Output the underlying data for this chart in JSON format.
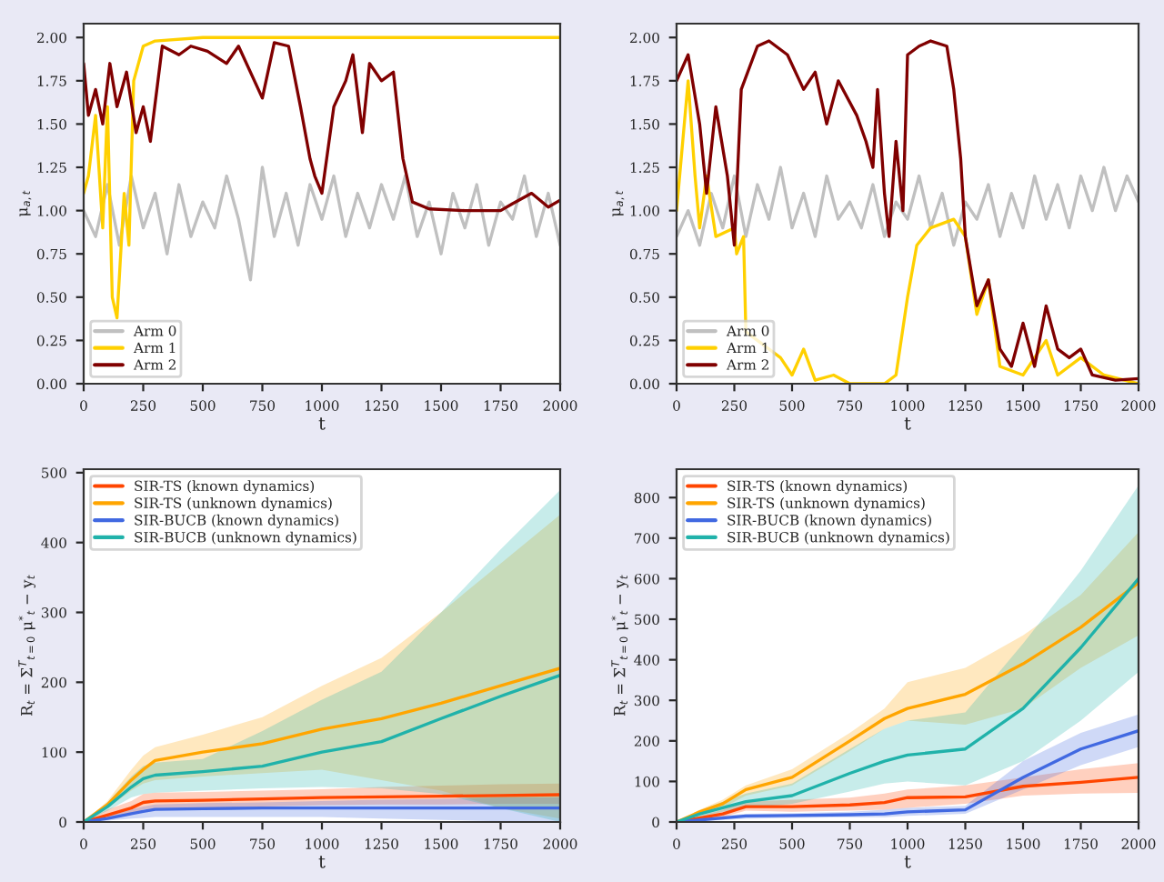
{
  "chart_data": [
    {
      "type": "line",
      "xlabel": "t",
      "ylabel": "μ$_{a,t}$",
      "xlim": [
        0,
        2000
      ],
      "ylim": [
        0,
        2.08
      ],
      "legend": "lower left",
      "grid": false,
      "xticks": [
        0,
        250,
        500,
        750,
        1000,
        1250,
        1500,
        1750,
        2000
      ],
      "yticks": [
        {
          "value": 0,
          "label": "0.00"
        },
        {
          "value": 0.25,
          "label": "0.25"
        },
        {
          "value": 0.5,
          "label": "0.50"
        },
        {
          "value": 0.75,
          "label": "0.75"
        },
        {
          "value": 1,
          "label": "1.00"
        },
        {
          "value": 1.25,
          "label": "1.25"
        },
        {
          "value": 1.5,
          "label": "1.50"
        },
        {
          "value": 1.75,
          "label": "1.75"
        },
        {
          "value": 2,
          "label": "2.00"
        }
      ],
      "series": [
        {
          "name": "Arm 0",
          "color": "#c0c0c0",
          "x": [
            0,
            50,
            100,
            150,
            200,
            250,
            300,
            350,
            400,
            450,
            500,
            550,
            600,
            650,
            700,
            750,
            800,
            850,
            900,
            950,
            1000,
            1050,
            1100,
            1150,
            1200,
            1250,
            1300,
            1350,
            1400,
            1450,
            1500,
            1550,
            1600,
            1650,
            1700,
            1750,
            1800,
            1850,
            1900,
            1950,
            2000
          ],
          "values": [
            1.0,
            0.85,
            1.15,
            0.8,
            1.2,
            0.9,
            1.1,
            0.75,
            1.15,
            0.85,
            1.05,
            0.9,
            1.2,
            0.95,
            0.6,
            1.25,
            0.85,
            1.1,
            0.8,
            1.15,
            0.95,
            1.2,
            0.85,
            1.1,
            0.9,
            1.15,
            0.95,
            1.2,
            0.85,
            1.05,
            0.75,
            1.1,
            0.9,
            1.15,
            0.8,
            1.05,
            0.95,
            1.2,
            0.85,
            1.1,
            0.8
          ]
        },
        {
          "name": "Arm 1",
          "color": "#ffd000",
          "x": [
            0,
            20,
            50,
            80,
            100,
            120,
            140,
            170,
            190,
            210,
            250,
            300,
            500,
            1000,
            1500,
            2000
          ],
          "values": [
            1.1,
            1.2,
            1.55,
            0.9,
            1.6,
            0.5,
            0.38,
            1.1,
            0.8,
            1.75,
            1.95,
            1.98,
            2.0,
            2.0,
            2.0,
            2.0
          ]
        },
        {
          "name": "Arm 2",
          "color": "#800000",
          "x": [
            0,
            20,
            50,
            80,
            110,
            140,
            180,
            220,
            250,
            280,
            330,
            400,
            450,
            520,
            600,
            650,
            750,
            800,
            860,
            910,
            950,
            970,
            1000,
            1050,
            1100,
            1130,
            1170,
            1200,
            1250,
            1300,
            1340,
            1380,
            1450,
            1600,
            1750,
            1800,
            1880,
            1950,
            2000
          ],
          "values": [
            1.85,
            1.55,
            1.7,
            1.5,
            1.85,
            1.6,
            1.8,
            1.45,
            1.6,
            1.4,
            1.95,
            1.9,
            1.95,
            1.92,
            1.85,
            1.95,
            1.65,
            1.97,
            1.95,
            1.6,
            1.3,
            1.2,
            1.1,
            1.6,
            1.75,
            1.9,
            1.45,
            1.85,
            1.75,
            1.8,
            1.3,
            1.05,
            1.01,
            1.0,
            1.0,
            1.04,
            1.1,
            1.02,
            1.06
          ]
        }
      ]
    },
    {
      "type": "line",
      "xlabel": "t",
      "ylabel": "μ$_{a,t}$",
      "xlim": [
        0,
        2000
      ],
      "ylim": [
        0,
        2.08
      ],
      "legend": "lower left",
      "grid": false,
      "xticks": [
        0,
        250,
        500,
        750,
        1000,
        1250,
        1500,
        1750,
        2000
      ],
      "yticks": [
        {
          "value": 0,
          "label": "0.00"
        },
        {
          "value": 0.25,
          "label": "0.25"
        },
        {
          "value": 0.5,
          "label": "0.50"
        },
        {
          "value": 0.75,
          "label": "0.75"
        },
        {
          "value": 1,
          "label": "1.00"
        },
        {
          "value": 1.25,
          "label": "1.25"
        },
        {
          "value": 1.5,
          "label": "1.50"
        },
        {
          "value": 1.75,
          "label": "1.75"
        },
        {
          "value": 2,
          "label": "2.00"
        }
      ],
      "series": [
        {
          "name": "Arm 0",
          "color": "#c0c0c0",
          "x": [
            0,
            50,
            100,
            150,
            200,
            250,
            300,
            350,
            400,
            450,
            500,
            550,
            600,
            650,
            700,
            750,
            800,
            850,
            900,
            950,
            1000,
            1050,
            1100,
            1150,
            1200,
            1250,
            1300,
            1350,
            1400,
            1450,
            1500,
            1550,
            1600,
            1650,
            1700,
            1750,
            1800,
            1850,
            1900,
            1950,
            2000
          ],
          "values": [
            0.85,
            1.0,
            0.8,
            1.1,
            0.9,
            1.2,
            0.85,
            1.15,
            0.95,
            1.25,
            0.9,
            1.1,
            0.85,
            1.2,
            0.95,
            1.05,
            0.9,
            1.15,
            0.85,
            1.05,
            0.95,
            1.2,
            0.9,
            1.1,
            0.8,
            1.05,
            0.95,
            1.15,
            0.85,
            1.1,
            0.9,
            1.2,
            0.95,
            1.15,
            0.9,
            1.2,
            1.0,
            1.25,
            1.0,
            1.2,
            1.05
          ]
        },
        {
          "name": "Arm 1",
          "color": "#ffd000",
          "x": [
            0,
            50,
            80,
            100,
            130,
            170,
            250,
            260,
            290,
            300,
            330,
            380,
            450,
            500,
            550,
            600,
            680,
            750,
            900,
            950,
            1000,
            1040,
            1100,
            1200,
            1250,
            1300,
            1350,
            1400,
            1500,
            1600,
            1650,
            1750,
            1850,
            2000
          ],
          "values": [
            1.0,
            1.75,
            1.2,
            0.9,
            1.2,
            0.85,
            0.9,
            0.75,
            0.85,
            0.3,
            null,
            null,
            0.15,
            0.05,
            0.2,
            0.02,
            0.05,
            0.0,
            0.0,
            0.05,
            0.5,
            0.8,
            0.9,
            0.95,
            0.85,
            0.4,
            0.6,
            0.1,
            0.05,
            0.25,
            0.05,
            0.15,
            0.05,
            0.0
          ]
        },
        {
          "name": "Arm 2",
          "color": "#800000",
          "x": [
            0,
            50,
            100,
            130,
            170,
            220,
            250,
            280,
            350,
            400,
            480,
            550,
            600,
            650,
            700,
            780,
            820,
            850,
            870,
            900,
            920,
            950,
            980,
            1000,
            1050,
            1100,
            1170,
            1200,
            1230,
            1250,
            1300,
            1350,
            1400,
            1450,
            1500,
            1550,
            1600,
            1650,
            1700,
            1750,
            1800,
            1900,
            2000
          ],
          "values": [
            1.75,
            1.9,
            1.5,
            1.1,
            1.6,
            1.2,
            0.8,
            1.7,
            1.95,
            1.98,
            1.9,
            1.7,
            1.8,
            1.5,
            1.75,
            1.55,
            1.4,
            1.25,
            1.7,
            1.1,
            0.85,
            1.4,
            1.0,
            1.9,
            1.95,
            1.98,
            1.95,
            1.7,
            1.3,
            0.85,
            0.45,
            0.6,
            0.2,
            0.1,
            0.35,
            0.1,
            0.45,
            0.2,
            0.15,
            0.2,
            0.05,
            0.02,
            0.03
          ]
        }
      ]
    },
    {
      "type": "line",
      "xlabel": "t",
      "ylabel": "R$_{t}$ = Σ$^{T}$$_{t=0}$ μ$^{*}$$_{t}$ − y$_{t}$",
      "xlim": [
        0,
        2000
      ],
      "ylim": [
        0,
        505
      ],
      "legend": "upper left",
      "grid": false,
      "xticks": [
        0,
        250,
        500,
        750,
        1000,
        1250,
        1500,
        1750,
        2000
      ],
      "yticks": [
        0,
        100,
        200,
        300,
        400,
        500
      ],
      "series": [
        {
          "name": "SIR-TS (known dynamics)",
          "color": "#ff4500",
          "x": [
            0,
            100,
            200,
            250,
            300,
            500,
            750,
            1000,
            1250,
            1500,
            1750,
            2000
          ],
          "values": [
            0,
            10,
            20,
            28,
            30,
            31,
            33,
            35,
            36,
            37,
            38,
            39
          ],
          "lower": [
            0,
            4,
            10,
            18,
            20,
            20,
            22,
            24,
            25,
            25,
            26,
            26
          ],
          "upper": [
            0,
            18,
            30,
            40,
            42,
            43,
            45,
            47,
            50,
            52,
            54,
            55
          ]
        },
        {
          "name": "SIR-TS (unknown dynamics)",
          "color": "#ffa500",
          "x": [
            0,
            100,
            200,
            250,
            300,
            500,
            750,
            1000,
            1250,
            1500,
            1750,
            2000
          ],
          "values": [
            0,
            25,
            60,
            75,
            88,
            100,
            112,
            133,
            148,
            170,
            195,
            220
          ],
          "lower": [
            0,
            20,
            45,
            55,
            60,
            65,
            70,
            75,
            60,
            45,
            20,
            5
          ],
          "upper": [
            0,
            30,
            75,
            95,
            107,
            125,
            150,
            195,
            235,
            300,
            370,
            440
          ]
        },
        {
          "name": "SIR-BUCB (known dynamics)",
          "color": "#4169e1",
          "x": [
            0,
            100,
            200,
            250,
            300,
            500,
            750,
            1000,
            1250,
            1500,
            1750,
            2000
          ],
          "values": [
            0,
            5,
            12,
            15,
            18,
            19,
            20,
            20,
            20,
            20,
            20,
            20
          ],
          "lower": [
            0,
            2,
            5,
            6,
            7,
            7,
            7,
            7,
            5,
            3,
            1,
            0
          ],
          "upper": [
            0,
            8,
            18,
            22,
            25,
            27,
            28,
            30,
            32,
            33,
            35,
            35
          ]
        },
        {
          "name": "SIR-BUCB (unknown dynamics)",
          "color": "#20b2aa",
          "x": [
            0,
            100,
            200,
            250,
            300,
            500,
            750,
            1000,
            1250,
            1500,
            1750,
            2000
          ],
          "values": [
            0,
            22,
            50,
            62,
            67,
            72,
            80,
            100,
            115,
            148,
            180,
            210
          ],
          "lower": [
            0,
            16,
            35,
            40,
            42,
            45,
            48,
            50,
            48,
            40,
            20,
            0
          ],
          "upper": [
            0,
            28,
            65,
            80,
            85,
            90,
            130,
            175,
            215,
            300,
            390,
            475
          ]
        }
      ]
    },
    {
      "type": "line",
      "xlabel": "t",
      "ylabel": "R$_{t}$ = Σ$^{T}$$_{t=0}$ μ$^{*}$$_{t}$ − y$_{t}$",
      "xlim": [
        0,
        2000
      ],
      "ylim": [
        0,
        870
      ],
      "legend": "upper left",
      "grid": false,
      "xticks": [
        0,
        250,
        500,
        750,
        1000,
        1250,
        1500,
        1750,
        2000
      ],
      "yticks": [
        0,
        100,
        200,
        300,
        400,
        500,
        600,
        700,
        800
      ],
      "series": [
        {
          "name": "SIR-TS (known dynamics)",
          "color": "#ff4500",
          "x": [
            0,
            100,
            200,
            300,
            500,
            750,
            900,
            1000,
            1250,
            1500,
            1750,
            2000
          ],
          "values": [
            0,
            10,
            20,
            38,
            38,
            42,
            48,
            60,
            62,
            88,
            98,
            110
          ],
          "lower": [
            0,
            5,
            12,
            28,
            25,
            28,
            30,
            35,
            45,
            65,
            70,
            72
          ],
          "upper": [
            0,
            15,
            30,
            50,
            55,
            60,
            70,
            80,
            90,
            110,
            130,
            145
          ]
        },
        {
          "name": "SIR-TS (unknown dynamics)",
          "color": "#ffa500",
          "x": [
            0,
            100,
            200,
            300,
            500,
            750,
            900,
            1000,
            1250,
            1500,
            1750,
            2000
          ],
          "values": [
            0,
            25,
            45,
            80,
            110,
            200,
            255,
            280,
            315,
            390,
            480,
            590
          ],
          "lower": [
            0,
            20,
            35,
            65,
            90,
            175,
            230,
            250,
            240,
            280,
            380,
            460
          ],
          "upper": [
            0,
            30,
            55,
            90,
            130,
            220,
            280,
            345,
            380,
            460,
            560,
            715
          ]
        },
        {
          "name": "SIR-BUCB (known dynamics)",
          "color": "#4169e1",
          "x": [
            0,
            100,
            200,
            300,
            500,
            750,
            900,
            1000,
            1250,
            1500,
            1750,
            2000
          ],
          "values": [
            0,
            5,
            10,
            15,
            16,
            18,
            20,
            25,
            30,
            110,
            180,
            225
          ],
          "lower": [
            0,
            2,
            5,
            8,
            10,
            12,
            12,
            15,
            20,
            80,
            140,
            185
          ],
          "upper": [
            0,
            8,
            15,
            20,
            22,
            25,
            30,
            35,
            40,
            150,
            220,
            265
          ]
        },
        {
          "name": "SIR-BUCB (unknown dynamics)",
          "color": "#20b2aa",
          "x": [
            0,
            100,
            200,
            300,
            500,
            750,
            900,
            1000,
            1250,
            1500,
            1750,
            2000
          ],
          "values": [
            0,
            20,
            35,
            50,
            65,
            120,
            150,
            165,
            180,
            280,
            430,
            600
          ],
          "lower": [
            0,
            12,
            25,
            35,
            45,
            75,
            95,
            100,
            90,
            150,
            250,
            370
          ],
          "upper": [
            0,
            28,
            50,
            70,
            95,
            180,
            230,
            250,
            270,
            440,
            620,
            830
          ]
        }
      ]
    }
  ]
}
